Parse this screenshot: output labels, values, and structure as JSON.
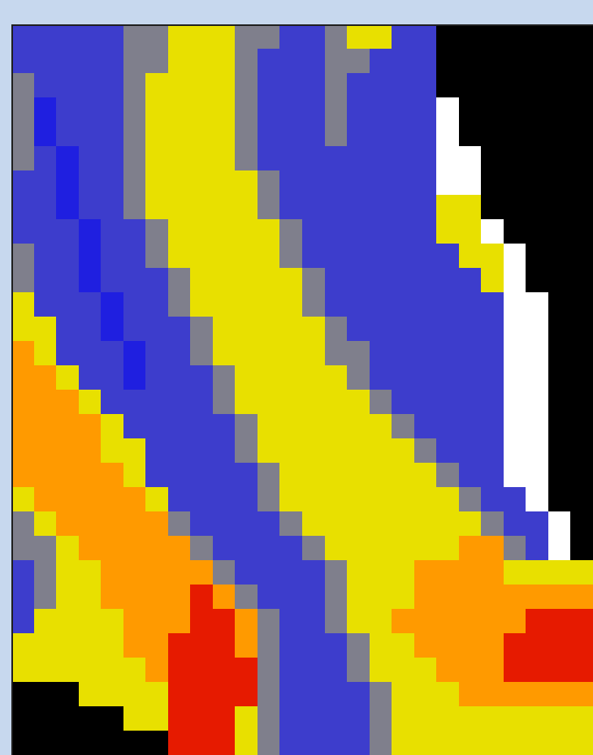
{
  "chart_data": {
    "type": "heatmap",
    "title": "",
    "xlabel": "",
    "ylabel": "",
    "grid": false,
    "legend": false,
    "palette": {
      "black": "#000000",
      "blue": "#3d3dcc",
      "deep-blue": "#1f1fe0",
      "gray": "#7f7f8c",
      "olive": "#b8b34f",
      "yellow": "#e8e000",
      "bright-yellow": "#ffff00",
      "orange": "#ff9a00",
      "red": "#e61a00",
      "white": "#ffffff"
    },
    "rows": [
      "bbbbbggyyyggbbgyybbkkkkkkk",
      "bbbbbggyyygbbbggbbbkkkkkkk",
      "gbbbbgyyyygbbbgbbbbkkkkkkk",
      "gdbbbgyyyygbbbgbbbbwkkkkkk",
      "gdbbbgyyyygbbbgbbbbwkkkkkk",
      "gbdbbgyyyygbbbbbbbbwwkkkkk",
      "bbdbbgyyyyygbbbbbbbwwkkkkk",
      "bbdbbgyyyyygbbbbbbbyykkkkk",
      "bbbdbbgyyyyygbbbbbbyywkkkk",
      "gbbdbbgyyyyygbbbbbbbyywkkk",
      "gbbdbbbgyyyyygbbbbbbbywkkk",
      "ybbbdbbgyyyyygbbbbbbbbwwkk",
      "yybbdbbbgyyyyygbbbbbbbwwkk",
      "oybbbdbbgyyyyyggbbbbbbwwkk",
      "ooybbdbbbgyyyyygbbbbbbwwkk",
      "oooybbbbbgyyyyyygbbbbbwwkk",
      "ooooybbbbbgyyyyyygbbbbwwkk",
      "ooooyybbbbgyyyyyyygbbbwwkk",
      "oooooybbbbbgyyyyyyygbbwwkk",
      "yoooooybbbbgyyyyyyyygbbwkk",
      "gyooooogbbbbgyyyyyyyygbbwk",
      "ggyooooogbbbbgyyyyyyoogbwk",
      "bgyyooooogbbbbgyyyooooyyyy",
      "bgyyoooorogbbbgyyyoooooooo",
      "byyyyooorrogbbgyyoooooorrr",
      "yyyyyoorrrogbbbgyyoooorrrr",
      "yyyyyyorrrrgbbbgyyyooorrrr",
      "kkkyyyyrrrrgbbbbgyyyoooooo",
      "kkkkkyyrrrygbbbbgyyyyyyyyy",
      "kkkkkkkrrrygbbbbgyyyyyyyyy"
    ]
  }
}
